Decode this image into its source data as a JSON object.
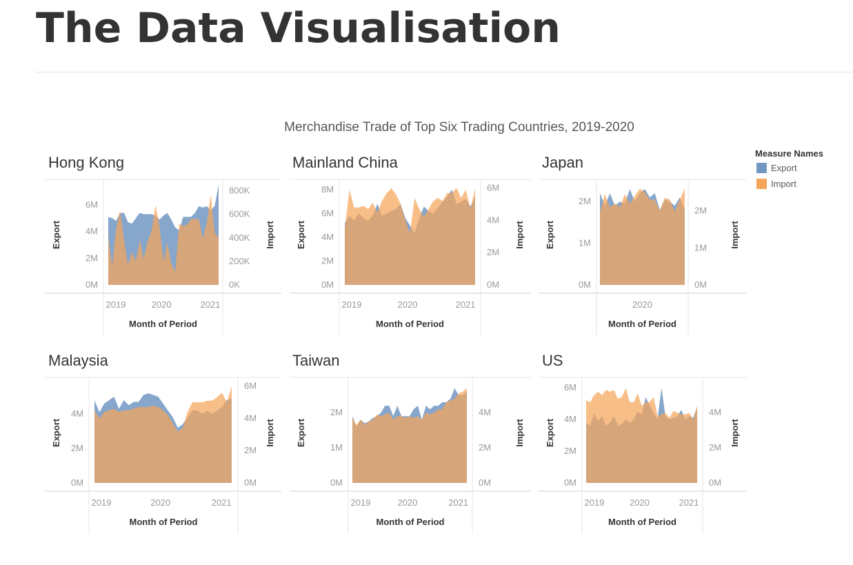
{
  "page": {
    "title": "The Data Visualisation"
  },
  "chart_data": {
    "type": "area",
    "title": "Merchandise Trade of Top Six Trading Countries, 2019-2020",
    "legend": {
      "title": "Measure Names",
      "placement": "top-right",
      "items": [
        {
          "name": "Export",
          "color": "#7297c3"
        },
        {
          "name": "Import",
          "color": "#f5a55a"
        }
      ]
    },
    "colors": {
      "export": "#7297c3",
      "import": "#f5a55a",
      "overlap": "#c8956a"
    },
    "xlabel": "Month of Period",
    "ylabel_left": "Export",
    "ylabel_right": "Import",
    "x_start": "2018-12",
    "x_end": "2021-03",
    "panels": [
      {
        "country": "Hong Kong",
        "x_ticks": [
          "2019",
          "2020",
          "2021"
        ],
        "left_axis": {
          "min": 0,
          "max": 7500000,
          "ticks": [
            0,
            2000000,
            4000000,
            6000000
          ],
          "tick_labels": [
            "0M",
            "2M",
            "4M",
            "6M"
          ]
        },
        "right_axis": {
          "min": 0,
          "max": 850000,
          "ticks": [
            0,
            200000,
            400000,
            600000,
            800000
          ],
          "tick_labels": [
            "0K",
            "200K",
            "400K",
            "600K",
            "800K"
          ]
        },
        "export": [
          5.1,
          5.0,
          4.8,
          5.4,
          5.4,
          4.7,
          4.6,
          5.0,
          5.4,
          5.3,
          5.3,
          5.3,
          5.2,
          4.9,
          5.2,
          5.4,
          4.9,
          4.3,
          4.1,
          5.1,
          5.1,
          5.1,
          5.4,
          5.9,
          5.8,
          5.9,
          5.6,
          5.9,
          7.5
        ],
        "import": [
          410000,
          160000,
          480000,
          630000,
          380000,
          170000,
          280000,
          200000,
          380000,
          220000,
          370000,
          460000,
          680000,
          500000,
          200000,
          360000,
          180000,
          110000,
          520000,
          500000,
          510000,
          560000,
          560000,
          560000,
          390000,
          530000,
          770000,
          440000,
          400000
        ]
      },
      {
        "country": "Mainland China",
        "x_ticks": [
          "2019",
          "2020",
          "2021"
        ],
        "left_axis": {
          "min": 0,
          "max": 8400000,
          "ticks": [
            0,
            2000000,
            4000000,
            6000000,
            8000000
          ],
          "tick_labels": [
            "0M",
            "2M",
            "4M",
            "6M",
            "8M"
          ]
        },
        "right_axis": {
          "min": 0,
          "max": 6200000,
          "ticks": [
            0,
            2000000,
            4000000,
            6000000
          ],
          "tick_labels": [
            "0M",
            "2M",
            "4M",
            "6M"
          ]
        },
        "export": [
          5.2,
          5.8,
          5.4,
          6.0,
          5.6,
          5.4,
          5.8,
          6.8,
          5.8,
          6.0,
          6.2,
          6.4,
          6.8,
          5.6,
          5.0,
          4.4,
          5.6,
          6.6,
          6.2,
          6.0,
          6.5,
          7.0,
          7.4,
          8.0,
          6.8,
          7.0,
          7.2,
          6.6,
          7.4
        ],
        "import": [
          3500000,
          5900000,
          4800000,
          4800000,
          4900000,
          4700000,
          5100000,
          4500000,
          5200000,
          5700000,
          6000000,
          5600000,
          5000000,
          4000000,
          3200000,
          5400000,
          4700000,
          4200000,
          4700000,
          5200000,
          5400000,
          5200000,
          5700000,
          5700000,
          6000000,
          5400000,
          5900000,
          4700000,
          6000000
        ]
      },
      {
        "country": "Japan",
        "x_ticks": [
          "2020"
        ],
        "left_axis": {
          "min": 0,
          "max": 2400000,
          "ticks": [
            0,
            1000000,
            2000000
          ],
          "tick_labels": [
            "0M",
            "1M",
            "2M"
          ]
        },
        "right_axis": {
          "min": 0,
          "max": 2700000,
          "ticks": [
            0,
            1000000,
            2000000
          ],
          "tick_labels": [
            "0M",
            "1M",
            "2M"
          ]
        },
        "export": [
          2.2,
          1.9,
          2.2,
          1.9,
          2.0,
          1.95,
          2.3,
          2.0,
          2.2,
          2.3,
          2.1,
          2.2,
          1.8,
          2.05,
          2.0,
          1.9,
          2.1,
          1.8
        ],
        "import": [
          1950000,
          2450000,
          2100000,
          2200000,
          2100000,
          2450000,
          2200000,
          2400000,
          2600000,
          2500000,
          2300000,
          2300000,
          2000000,
          2350000,
          2300000,
          1990000,
          2300000,
          2600000
        ]
      },
      {
        "country": "Malaysia",
        "x_ticks": [
          "2019",
          "2020",
          "2021"
        ],
        "left_axis": {
          "min": 0,
          "max": 5800000,
          "ticks": [
            0,
            2000000,
            4000000
          ],
          "tick_labels": [
            "0M",
            "2M",
            "4M"
          ]
        },
        "right_axis": {
          "min": 0,
          "max": 6200000,
          "ticks": [
            0,
            2000000,
            4000000,
            6000000
          ],
          "tick_labels": [
            "0M",
            "2M",
            "4M",
            "6M"
          ]
        },
        "export": [
          4.8,
          4.1,
          4.6,
          4.8,
          5.0,
          4.3,
          4.8,
          4.5,
          4.7,
          4.7,
          5.1,
          5.2,
          5.1,
          5.0,
          4.6,
          4.2,
          3.8,
          3.2,
          3.4,
          3.8,
          4.2,
          4.2,
          4.0,
          4.2,
          4.0,
          4.2,
          4.4,
          4.8,
          4.9
        ],
        "import": [
          4500000,
          4000000,
          4400000,
          4500000,
          4600000,
          4400000,
          4500000,
          4500000,
          4600000,
          4700000,
          4700000,
          4700000,
          4800000,
          4700000,
          4500000,
          4200000,
          3700000,
          3200000,
          3400000,
          4400000,
          5000000,
          5000000,
          5000000,
          5100000,
          5100000,
          5300000,
          5600000,
          5000000,
          6000000
        ]
      },
      {
        "country": "Taiwan",
        "x_ticks": [
          "2019",
          "2020",
          "2021"
        ],
        "left_axis": {
          "min": 0,
          "max": 2850000,
          "ticks": [
            0,
            1000000,
            2000000
          ],
          "tick_labels": [
            "0M",
            "1M",
            "2M"
          ]
        },
        "right_axis": {
          "min": 0,
          "max": 5700000,
          "ticks": [
            0,
            2000000,
            4000000
          ],
          "tick_labels": [
            "0M",
            "2M",
            "4M"
          ]
        },
        "export": [
          1.9,
          1.6,
          1.8,
          1.7,
          1.75,
          1.85,
          1.9,
          2.0,
          2.2,
          2.2,
          1.9,
          2.2,
          1.9,
          1.9,
          1.9,
          2.1,
          2.2,
          1.8,
          2.2,
          2.1,
          2.2,
          2.2,
          2.3,
          2.3,
          2.4,
          2.7,
          2.5,
          2.5,
          2.6
        ],
        "import": [
          3700000,
          3300000,
          3600000,
          3300000,
          3500000,
          3600000,
          3900000,
          3800000,
          3900000,
          4000000,
          3600000,
          3800000,
          3800000,
          3700000,
          3800000,
          3700000,
          3800000,
          3600000,
          4000000,
          3900000,
          4000000,
          4200000,
          4200000,
          4600000,
          4700000,
          4800000,
          5100000,
          5200000,
          5400000
        ]
      },
      {
        "country": "US",
        "x_ticks": [
          "2019",
          "2020",
          "2021"
        ],
        "left_axis": {
          "min": 0,
          "max": 6300000,
          "ticks": [
            0,
            2000000,
            4000000,
            6000000
          ],
          "tick_labels": [
            "0M",
            "2M",
            "4M",
            "6M"
          ]
        },
        "right_axis": {
          "min": 0,
          "max": 5700000,
          "ticks": [
            0,
            2000000,
            4000000
          ],
          "tick_labels": [
            "0M",
            "2M",
            "4M"
          ]
        },
        "export": [
          3.8,
          3.6,
          4.4,
          3.9,
          4.2,
          3.6,
          3.8,
          4.2,
          3.6,
          3.7,
          4.0,
          3.8,
          4.0,
          4.5,
          4.3,
          5.4,
          4.9,
          4.4,
          4.0,
          6.0,
          4.2,
          4.0,
          4.1,
          4.2,
          4.6,
          4.0,
          4.2,
          4.1,
          4.8
        ],
        "import": [
          4700000,
          4600000,
          5000000,
          5200000,
          5000000,
          5300000,
          5200000,
          5300000,
          4800000,
          4900000,
          5400000,
          4600000,
          4600000,
          5100000,
          4400000,
          4600000,
          4600000,
          4900000,
          3800000,
          3900000,
          4000000,
          3700000,
          4100000,
          4000000,
          3900000,
          3900000,
          4000000,
          3600000,
          4400000
        ]
      }
    ]
  }
}
